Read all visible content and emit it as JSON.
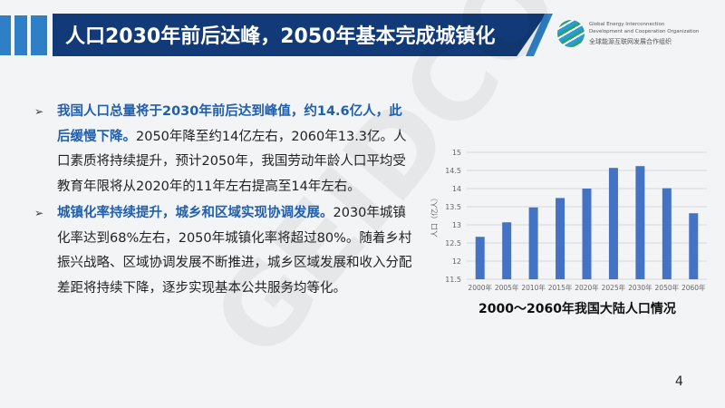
{
  "header": {
    "title": "人口2030年前后达峰，2050年基本完成城镇化"
  },
  "logo": {
    "line1": "Global Energy Interconnection",
    "line2": "Development and Cooperation Organization",
    "line3": "全球能源互联网发展合作组织"
  },
  "watermark": "GEIDCO",
  "bullets": [
    {
      "emphasis": "我国人口总量将于2030年前后达到峰值，约14.6亿人，此后缓慢下降。",
      "text": "2050年降至约14亿左右，2060年13.3亿。人口素质将持续提升，预计2050年，我国劳动年龄人口平均受教育年限将从2020年的11年左右提高至14年左右。"
    },
    {
      "emphasis": "城镇化率持续提升，城乡和区域实现协调发展。",
      "text": "2030年城镇化率达到68%左右，2050年城镇化率将超过80%。随着乡村振兴战略、区域协调发展不断推进，城乡区域发展和收入分配差距将持续下降，逐步实现基本公共服务均等化。"
    }
  ],
  "chart_data": {
    "type": "bar",
    "title": "2000～2060年我国大陆人口情况",
    "xlabel": "",
    "ylabel": "人口（亿人）",
    "categories": [
      "2000年",
      "2005年",
      "2010年",
      "2015年",
      "2020年",
      "2025年",
      "2030年",
      "2050年",
      "2060年"
    ],
    "values": [
      12.67,
      13.07,
      13.48,
      13.74,
      14.0,
      14.57,
      14.62,
      14.01,
      13.32
    ],
    "ylim": [
      11.5,
      15
    ],
    "yticks": [
      "11.5",
      "12",
      "12.5",
      "13",
      "13.5",
      "14",
      "14.5",
      "15"
    ],
    "grid": true,
    "color": "#4472c4"
  },
  "page_number": "4"
}
